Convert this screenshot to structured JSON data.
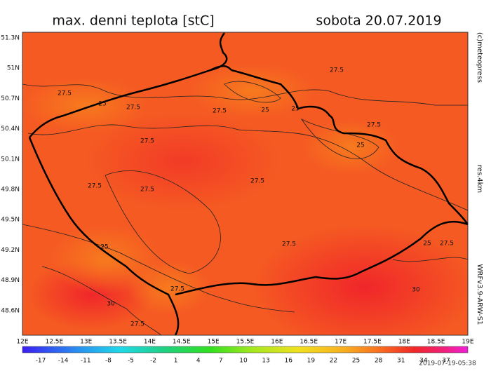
{
  "header": {
    "title": "max. denni teplota [stC]",
    "date": "sobota 20.07.2019"
  },
  "map": {
    "lat_labels": [
      "51.3N",
      "51N",
      "50.7N",
      "50.4N",
      "50.1N",
      "49.8N",
      "49.5N",
      "49.2N",
      "48.9N",
      "48.6N"
    ],
    "lon_labels": [
      "12E",
      "12.5E",
      "13E",
      "13.5E",
      "14E",
      "14.5E",
      "15E",
      "15.5E",
      "16E",
      "16.5E",
      "17E",
      "17.5E",
      "18E",
      "18.5E",
      "19E"
    ],
    "contour_labels": [
      "27.5",
      "27.5",
      "27.5",
      "27.5",
      "27.5",
      "27.5",
      "27.5",
      "27.5",
      "27.5",
      "27.5",
      "27.5",
      "27.5",
      "27.5",
      "25",
      "25",
      "25",
      "25",
      "25",
      "25",
      "30",
      "30"
    ]
  },
  "colorbar": {
    "labels": [
      "-17",
      "-14",
      "-11",
      "-8",
      "-5",
      "-2",
      "1",
      "4",
      "7",
      "10",
      "13",
      "16",
      "19",
      "22",
      "25",
      "28",
      "31",
      "34",
      "37"
    ]
  },
  "side": {
    "copyright": "(c)meteopress",
    "resolution": "res.4km",
    "model": "WRFv3.9-ARW-S1"
  },
  "footer": {
    "timestamp": "2019-07-19-05:38"
  }
}
